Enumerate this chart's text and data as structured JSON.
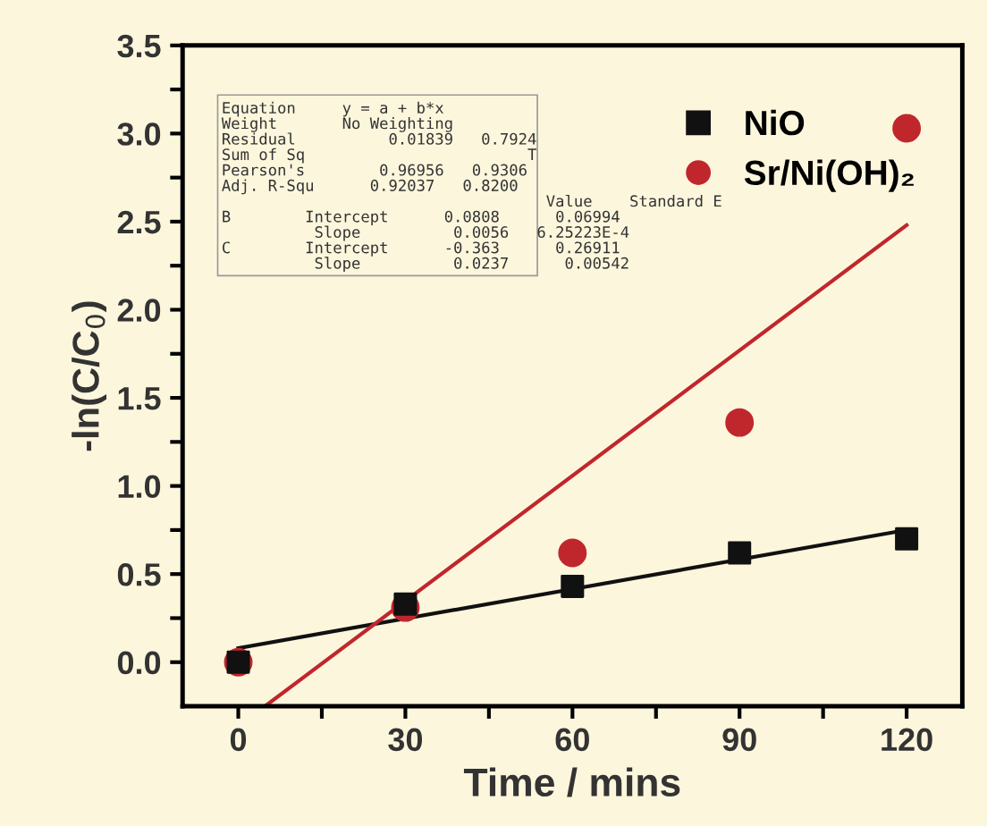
{
  "chart_data": {
    "type": "scatter",
    "xlabel": "Time / mins",
    "ylabel": "-ln(C/C$_{0}$)",
    "x": [
      0,
      30,
      60,
      90,
      120
    ],
    "series": [
      {
        "name": "NiO",
        "color": "#111111",
        "marker": "square",
        "values": [
          0,
          0.33,
          0.43,
          0.62,
          0.7
        ]
      },
      {
        "name": "Sr/Ni(OH)₂",
        "color": "#c0272d",
        "marker": "circle",
        "values": [
          0,
          0.31,
          0.62,
          1.36,
          3.03
        ]
      },
      {
        "type": "line",
        "color": "#111111",
        "x": [
          0,
          120
        ],
        "values": [
          0.08,
          0.75
        ]
      },
      {
        "type": "line",
        "color": "#c0272d",
        "x": [
          4.8,
          120
        ],
        "values": [
          -0.25,
          2.48
        ]
      }
    ],
    "xlim": [
      -10,
      130
    ],
    "ylim": [
      -0.25,
      3.5
    ],
    "xticks": [
      0,
      {
        "value": 15,
        "label": null
      },
      30,
      {
        "value": 45,
        "label": null
      },
      60,
      {
        "value": 75,
        "label": null
      },
      90,
      {
        "value": 105,
        "label": null
      },
      120
    ],
    "yticks": [
      {
        "value": 0.0,
        "label": "0.0"
      },
      {
        "value": 0.25,
        "label": null
      },
      0.5,
      {
        "value": 0.75,
        "label": null
      },
      {
        "value": 1.0,
        "label": "1.0"
      },
      {
        "value": 1.25,
        "label": null
      },
      1.5,
      {
        "value": 1.75,
        "label": null
      },
      {
        "value": 2.0,
        "label": "2.0"
      },
      {
        "value": 2.25,
        "label": null
      },
      2.5,
      {
        "value": 2.75,
        "label": null
      },
      {
        "value": 3.0,
        "label": "3.0"
      },
      {
        "value": 3.25,
        "label": null
      },
      3.5
    ],
    "annotations": [
      "Equation     y = a + b*x",
      "Weight       No Weighting",
      "Residual          0.01839   0.7924",
      "Sum of Sq                        T",
      "Pearson's        0.96956   0.9306",
      "Adj. R-Squ      0.92037   0.8200",
      "                                   Value    Standard E",
      "B        Intercept      0.0808      0.06994",
      "          Slope          0.0056   6.25223E-4",
      "C        Intercept      -0.363      0.26911",
      "          Slope          0.0237      0.00542"
    ],
    "legend": "top right",
    "grid": false
  }
}
